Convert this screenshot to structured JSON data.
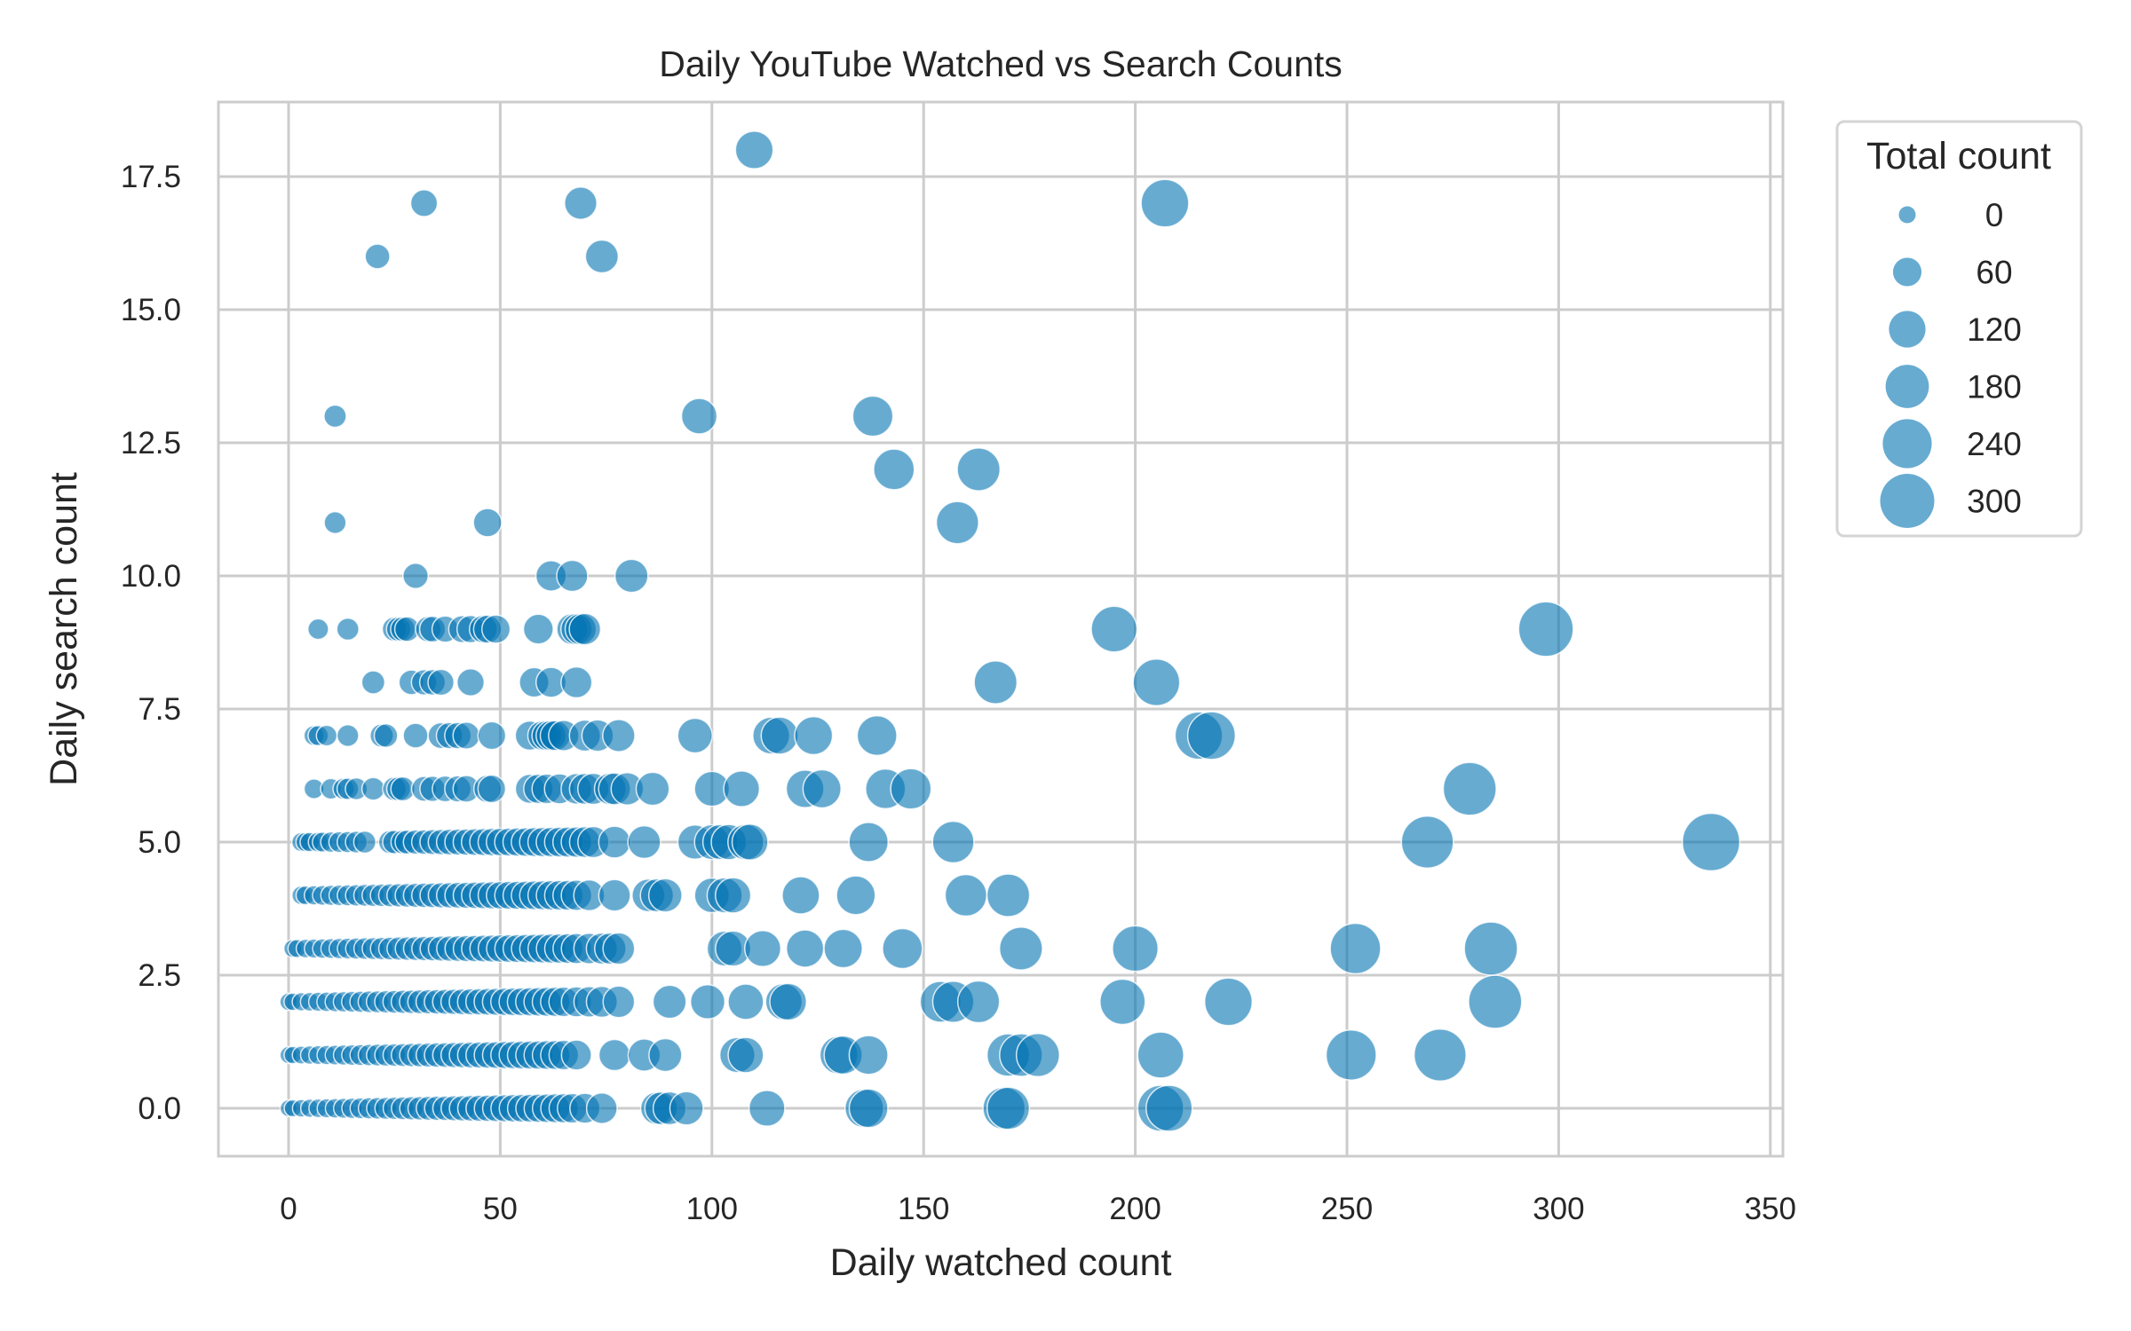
{
  "title": "Daily YouTube Watched vs Search Counts",
  "xlabel": "Daily watched count",
  "ylabel": "Daily search count",
  "x_ticks": [
    "0",
    "50",
    "100",
    "150",
    "200",
    "250",
    "300",
    "350"
  ],
  "y_ticks": [
    "0.0",
    "2.5",
    "5.0",
    "7.5",
    "10.0",
    "12.5",
    "15.0",
    "17.5"
  ],
  "legend": {
    "title": "Total count",
    "entries": [
      "0",
      "60",
      "120",
      "180",
      "240",
      "300"
    ]
  },
  "colors": {
    "marker": "#0173b2",
    "marker_alpha": 0.6,
    "grid": "#cccccc",
    "text": "#262626"
  },
  "chart_data": {
    "type": "scatter",
    "title": "Daily YouTube Watched vs Search Counts",
    "xlabel": "Daily watched count",
    "ylabel": "Daily search count",
    "xlim": [
      -17,
      352
    ],
    "ylim": [
      -0.9,
      18.9
    ],
    "grid": true,
    "legend_position": "outside upper right",
    "size_variable": "Total count",
    "size_legend": [
      0,
      60,
      120,
      180,
      240,
      300
    ],
    "rows": {
      "18": [
        110
      ],
      "17": [
        32,
        69,
        207
      ],
      "16": [
        21,
        74
      ],
      "13": [
        11,
        97,
        138
      ],
      "12": [
        143,
        163
      ],
      "11": [
        11,
        47,
        158
      ],
      "10": [
        30,
        62,
        67,
        81
      ],
      "9": [
        7,
        14,
        25,
        26,
        27,
        28,
        33,
        34,
        37,
        41,
        43,
        46,
        47,
        49,
        59,
        67,
        68,
        69,
        70,
        195,
        297
      ],
      "8": [
        20,
        29,
        32,
        34,
        36,
        43,
        58,
        62,
        68,
        167,
        205
      ],
      "7": [
        6,
        7,
        9,
        14,
        22,
        23,
        30,
        36,
        38,
        40,
        42,
        48,
        57,
        60,
        61,
        62,
        63,
        65,
        70,
        73,
        78,
        96,
        114,
        116,
        124,
        139,
        215,
        218
      ],
      "6": [
        6,
        10,
        13,
        14,
        16,
        20,
        25,
        26,
        27,
        32,
        34,
        37,
        40,
        42,
        47,
        48,
        57,
        59,
        61,
        64,
        68,
        70,
        72,
        76,
        77,
        80,
        86,
        100,
        107,
        122,
        126,
        141,
        147,
        279
      ],
      "5": [
        3,
        4,
        5,
        7,
        8,
        10,
        12,
        14,
        16,
        18,
        24,
        25,
        27,
        28,
        30,
        32,
        34,
        36,
        38,
        40,
        42,
        44,
        46,
        48,
        50,
        52,
        54,
        56,
        58,
        60,
        62,
        64,
        66,
        68,
        70,
        72,
        77,
        84,
        96,
        100,
        102,
        104,
        108,
        109,
        137,
        157,
        269,
        336
      ],
      "4": [
        3,
        4,
        6,
        8,
        10,
        12,
        14,
        16,
        18,
        20,
        22,
        24,
        26,
        28,
        30,
        32,
        34,
        36,
        38,
        40,
        42,
        44,
        46,
        48,
        50,
        52,
        54,
        56,
        58,
        60,
        62,
        64,
        66,
        68,
        71,
        77,
        85,
        87,
        89,
        100,
        103,
        105,
        121,
        134,
        160,
        170
      ],
      "3": [
        1,
        2,
        4,
        6,
        8,
        10,
        12,
        14,
        16,
        18,
        20,
        22,
        24,
        26,
        28,
        30,
        32,
        34,
        36,
        38,
        40,
        42,
        44,
        46,
        48,
        50,
        52,
        54,
        56,
        58,
        60,
        62,
        64,
        66,
        68,
        71,
        74,
        76,
        78,
        103,
        105,
        112,
        122,
        131,
        145,
        173,
        200,
        252,
        284
      ],
      "2": [
        0,
        1,
        3,
        5,
        7,
        9,
        11,
        13,
        15,
        17,
        19,
        21,
        23,
        25,
        27,
        29,
        31,
        33,
        35,
        37,
        39,
        41,
        43,
        45,
        47,
        49,
        51,
        53,
        55,
        57,
        59,
        61,
        63,
        65,
        68,
        71,
        74,
        78,
        90,
        99,
        108,
        117,
        118,
        154,
        157,
        163,
        197,
        222,
        285
      ],
      "1": [
        0,
        1,
        3,
        5,
        7,
        9,
        11,
        13,
        15,
        17,
        19,
        21,
        23,
        25,
        27,
        29,
        31,
        33,
        35,
        37,
        39,
        41,
        43,
        45,
        47,
        49,
        51,
        53,
        55,
        57,
        59,
        61,
        63,
        65,
        68,
        77,
        84,
        89,
        106,
        108,
        130,
        131,
        137,
        170,
        173,
        177,
        206,
        251,
        272
      ],
      "0": [
        0,
        1,
        3,
        5,
        7,
        9,
        11,
        13,
        15,
        17,
        19,
        21,
        23,
        25,
        27,
        29,
        31,
        33,
        35,
        37,
        39,
        41,
        43,
        45,
        47,
        49,
        51,
        53,
        55,
        57,
        59,
        61,
        63,
        65,
        67,
        70,
        74,
        87,
        88,
        90,
        94,
        113,
        136,
        137,
        169,
        170,
        206,
        208
      ]
    }
  }
}
